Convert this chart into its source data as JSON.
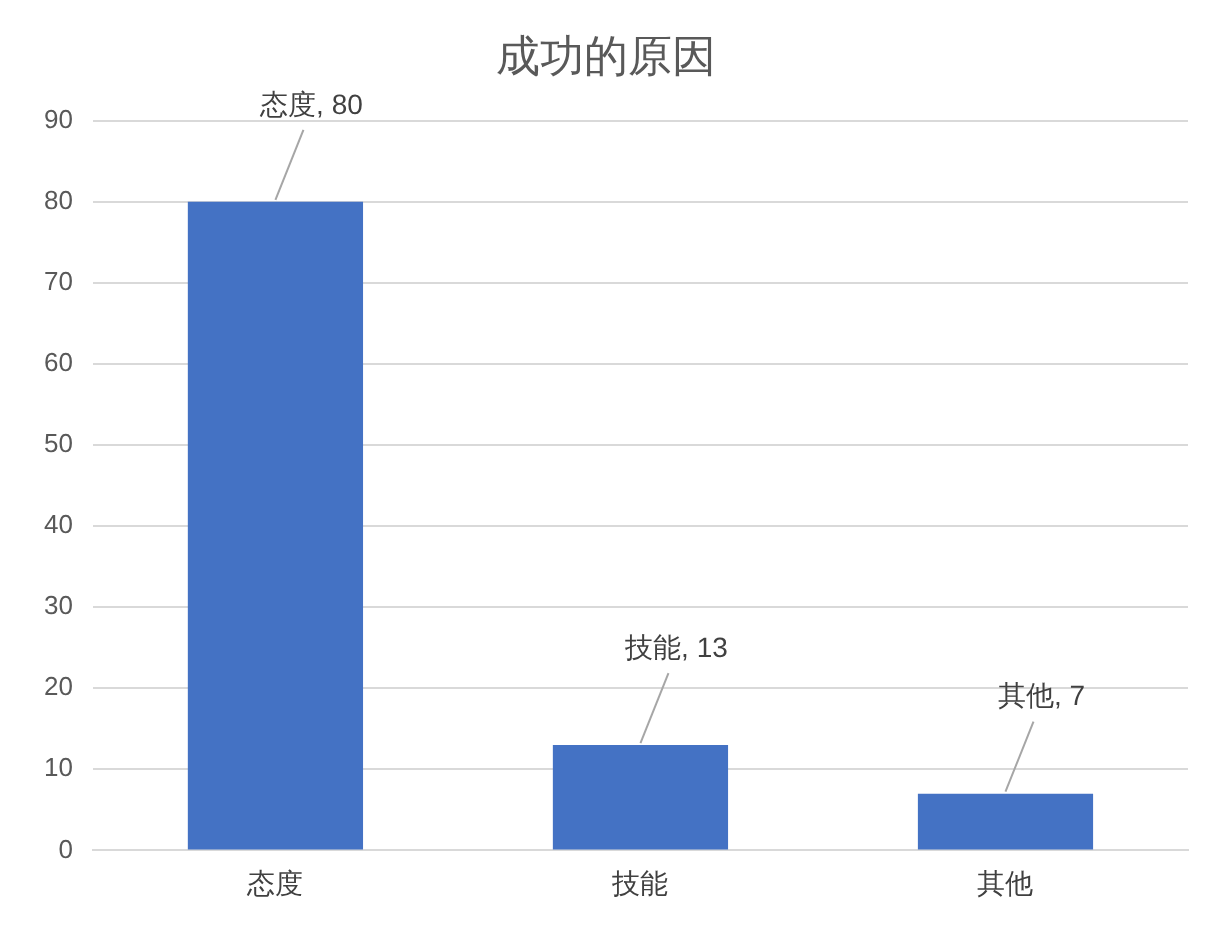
{
  "chart_data": {
    "type": "bar",
    "title": "成功的原因",
    "categories": [
      "态度",
      "技能",
      "其他"
    ],
    "values": [
      80,
      13,
      7
    ],
    "value_labels": [
      "态度, 80",
      "技能, 13",
      "其他, 7"
    ],
    "color": "#4472c4",
    "ylim": [
      0,
      90
    ],
    "yticks": [
      0,
      10,
      20,
      30,
      40,
      50,
      60,
      70,
      80,
      90
    ],
    "grid": "y",
    "legend": false
  }
}
